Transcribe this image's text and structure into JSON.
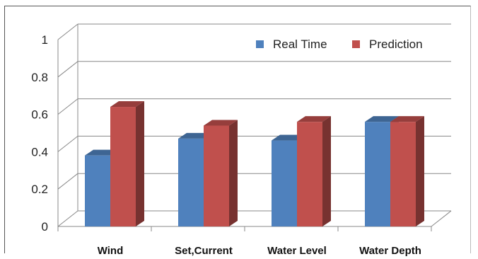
{
  "chart_data": {
    "type": "bar",
    "categories": [
      "Wind",
      "Set,Current",
      "Water Level",
      "Water Depth"
    ],
    "series": [
      {
        "name": "Real Time",
        "values": [
          0.38,
          0.47,
          0.46,
          0.56
        ],
        "color": "#4F81BD"
      },
      {
        "name": "Prediction",
        "values": [
          0.64,
          0.54,
          0.56,
          0.56
        ],
        "color": "#C0504D"
      }
    ],
    "ylim": [
      0,
      1
    ],
    "yticks": [
      "0",
      "0.2",
      "0.4",
      "0.6",
      "0.8",
      "1"
    ],
    "grid": true,
    "legend_position": "top-right",
    "style": "3d"
  }
}
